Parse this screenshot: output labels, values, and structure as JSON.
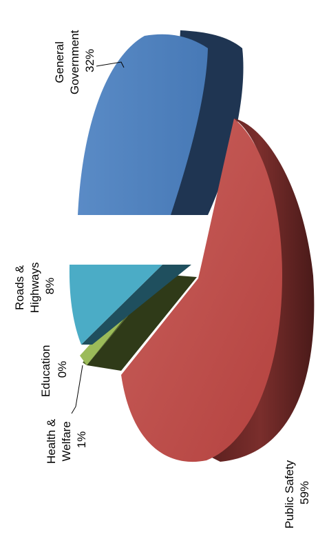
{
  "chart_data": {
    "type": "pie",
    "title": "",
    "three_d": true,
    "exploded": true,
    "orientation": "rotated-90-ccw",
    "slices": [
      {
        "label_lines": [
          "General",
          "Government"
        ],
        "pct_label": "32%",
        "value": 32,
        "color": "#4F81BD"
      },
      {
        "label_lines": [
          "Public Safety"
        ],
        "pct_label": "59%",
        "value": 59,
        "color": "#C0504D"
      },
      {
        "label_lines": [
          "Health &",
          "Welfare"
        ],
        "pct_label": "1%",
        "value": 1,
        "color": "#9BBB59"
      },
      {
        "label_lines": [
          "Education"
        ],
        "pct_label": "0%",
        "value": 0,
        "color": "#4F6228"
      },
      {
        "label_lines": [
          "Roads &",
          "Highways"
        ],
        "pct_label": "8%",
        "value": 8,
        "color": "#4BACC6"
      }
    ],
    "leader_lines": [
      "General Government",
      "Health & Welfare"
    ]
  }
}
